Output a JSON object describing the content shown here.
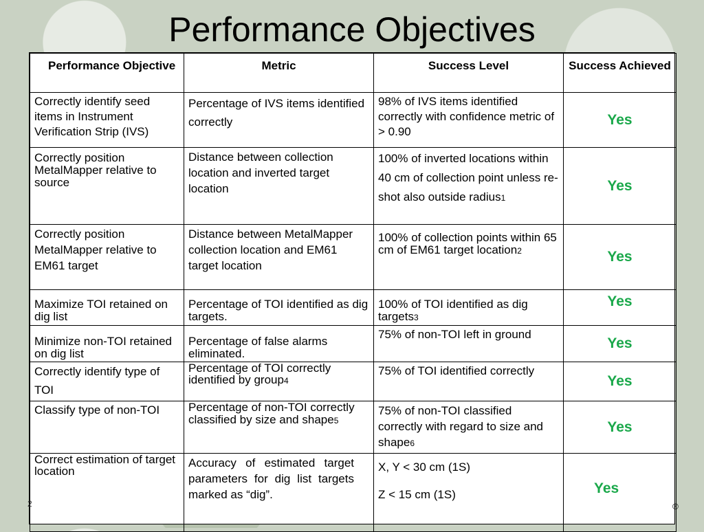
{
  "title": "Performance Objectives",
  "table": {
    "headers": [
      "Performance Objective",
      "Metric",
      "Success Level",
      "Success Achieved"
    ],
    "rows": [
      {
        "objective": "Correctly identify seed items in Instrument Verification Strip (IVS)",
        "metric": "Percentage of IVS items identified correctly",
        "level": "98% of IVS items identified correctly with confidence metric of  > 0.90",
        "achieved": "Yes"
      },
      {
        "objective": "Correctly position MetalMapper relative to source",
        "metric": "Distance between collection location and inverted target location",
        "level": "100% of inverted locations within 40 cm of collection point unless re-shot also outside radius",
        "level_note": "1",
        "achieved": "Yes"
      },
      {
        "objective": "Correctly position MetalMapper relative to EM61 target",
        "metric": "Distance between MetalMapper collection location and EM61 target location",
        "level": "100% of collection points within 65 cm of EM61 target location",
        "level_note": "2",
        "achieved": "Yes"
      },
      {
        "objective": "Maximize TOI retained on dig list",
        "metric": "Percentage of TOI identified as dig targets.",
        "level": "100% of TOI identified as dig targets",
        "level_note": "3",
        "achieved": "Yes"
      },
      {
        "objective": "Minimize non-TOI retained on dig list",
        "metric": "Percentage of false alarms eliminated.",
        "level": "75% of non-TOI left in ground",
        "achieved": "Yes"
      },
      {
        "objective": "Correctly identify type of TOI",
        "metric": "Percentage of TOI correctly identified by group",
        "metric_note": "4",
        "level": "75% of TOI identified correctly",
        "achieved": "Yes"
      },
      {
        "objective": "Classify type of non-TOI",
        "metric": "Percentage of non-TOI correctly classified by size and shape",
        "metric_note": "5",
        "level": "75% of non-TOI classified correctly with regard to size and shape",
        "level_note": "6",
        "achieved": "Yes"
      },
      {
        "objective": "Correct estimation of target location",
        "metric": "Accuracy of estimated target parameters for dig list targets marked as “dig”.",
        "level_lines": [
          "X, Y    < 30 cm (1S)",
          "Z         < 15 cm (1S)"
        ],
        "achieved": "Yes"
      }
    ]
  },
  "footer": {
    "page_number": "2",
    "mark": "®"
  }
}
